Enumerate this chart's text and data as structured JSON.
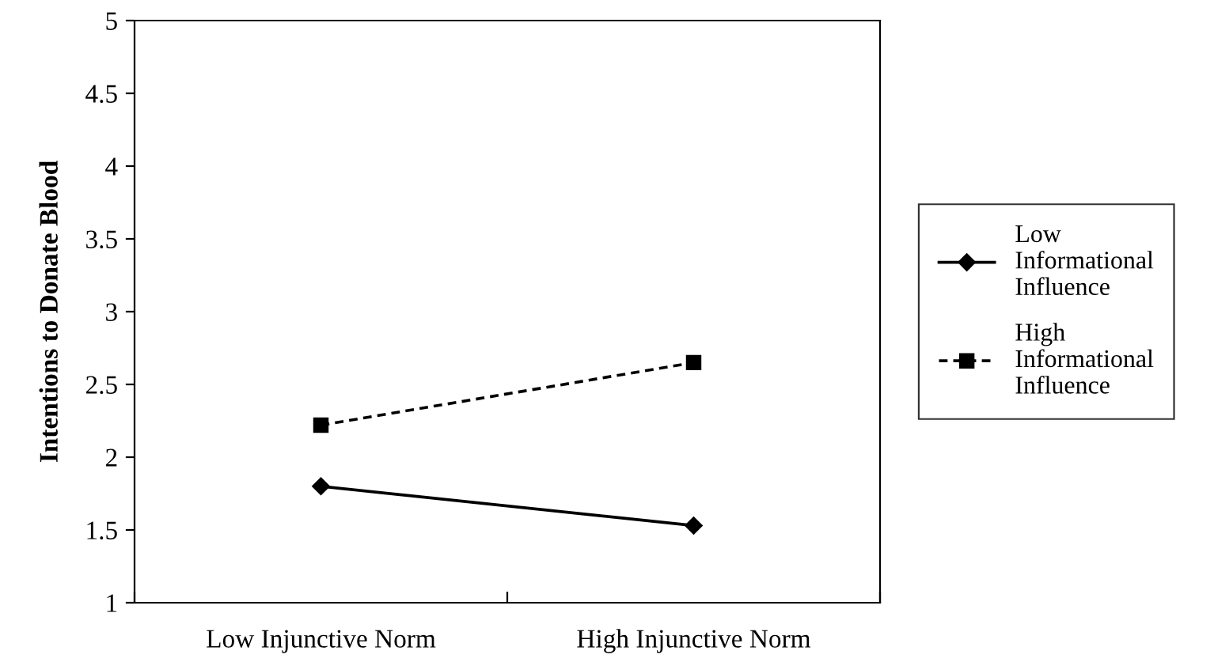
{
  "chart_data": {
    "type": "line",
    "ylabel": "Intentions to Donate Blood",
    "categories": [
      "Low Injunctive Norm",
      "High Injunctive Norm"
    ],
    "series": [
      {
        "name": "Low Informational Influence",
        "color": "#000000",
        "values": [
          1.8,
          1.53
        ],
        "marker": "diamond",
        "line_style": "solid"
      },
      {
        "name": "High Informational Influence",
        "color": "#000000",
        "values": [
          2.22,
          2.65
        ],
        "marker": "square",
        "line_style": "dashed"
      }
    ],
    "ylim": [
      1,
      5
    ],
    "yticks": [
      1,
      1.5,
      2,
      2.5,
      3,
      3.5,
      4,
      4.5,
      5
    ],
    "grid": false,
    "legend": "right"
  }
}
